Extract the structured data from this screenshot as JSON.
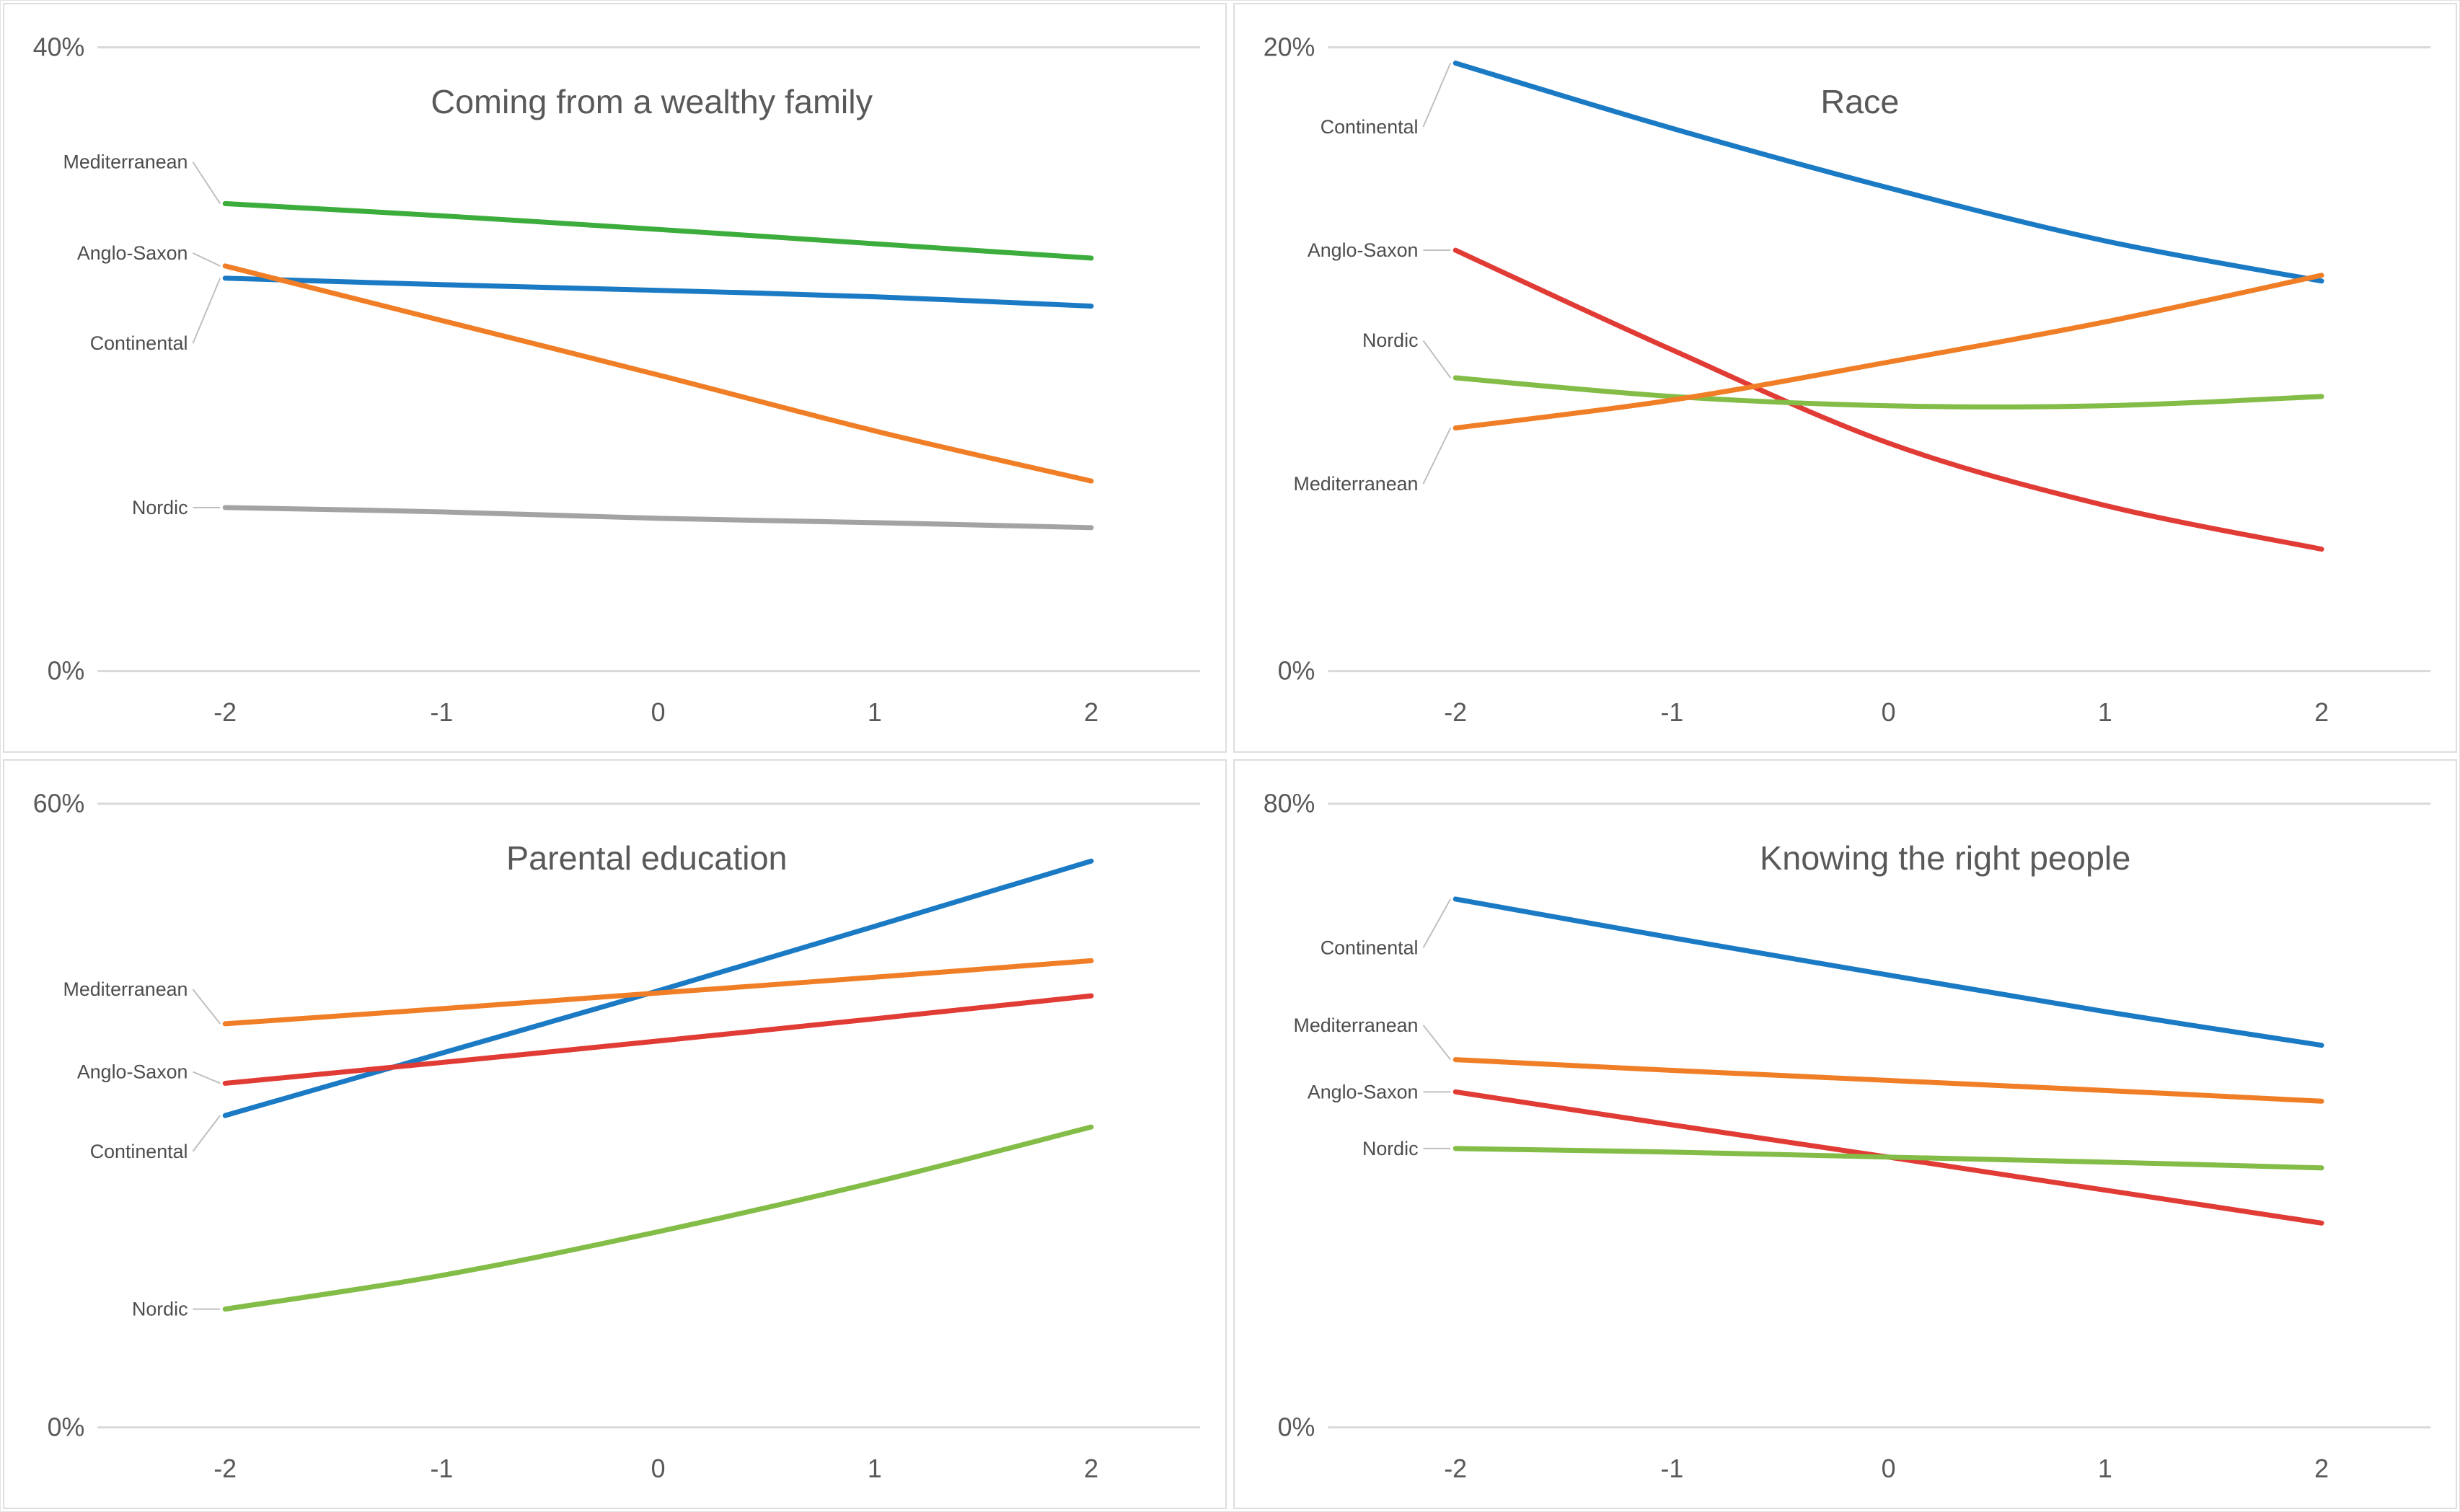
{
  "page": {
    "background": "#ffffff",
    "panel_border_color": "#dedede",
    "gridline_color": "#d9d9d9",
    "axis_text_color": "#595959",
    "series_label_color": "#4d4d4d",
    "leader_line_color": "#bfbfbf"
  },
  "colors": {
    "blue": "#1b7ac4",
    "orange": "#f07e26",
    "red": "#e13b35",
    "green": "#3cad3c",
    "light_green": "#83bc47",
    "gray": "#a3a3a3"
  },
  "chart_data": [
    {
      "type": "line",
      "title": "Coming from a wealthy family",
      "title_x_frac": 0.53,
      "x": [
        -2,
        -1,
        0,
        1,
        2
      ],
      "x_tick_labels": [
        "-2",
        "-1",
        "0",
        "1",
        "2"
      ],
      "ylim": [
        0,
        40
      ],
      "ymax_label": "40%",
      "ymin_label": "0%",
      "grid": "top-and-zero-only",
      "legend_position": "inline-left-labels",
      "series": [
        {
          "name": "Continental",
          "color": "blue",
          "values": [
            25.2,
            24.8,
            24.4,
            24.0,
            23.4
          ],
          "label_dy": 91
        },
        {
          "name": "Anglo-Saxon",
          "color": "orange",
          "values": [
            26.0,
            22.5,
            19.0,
            15.4,
            12.2
          ],
          "label_dy": -18
        },
        {
          "name": "Nordic",
          "color": "gray",
          "values": [
            10.5,
            10.2,
            9.8,
            9.5,
            9.2
          ],
          "label_dy": 0
        },
        {
          "name": "Mediterranean",
          "color": "green",
          "values": [
            30.0,
            29.2,
            28.3,
            27.4,
            26.5
          ],
          "label_dy": -58
        }
      ]
    },
    {
      "type": "line",
      "title": "Race",
      "title_x_frac": 0.512,
      "x": [
        -2,
        -1,
        0,
        1,
        2
      ],
      "x_tick_labels": [
        "-2",
        "-1",
        "0",
        "1",
        "2"
      ],
      "ylim": [
        0,
        20
      ],
      "ymax_label": "20%",
      "ymin_label": "0%",
      "grid": "top-and-zero-only",
      "legend_position": "inline-left-labels",
      "series": [
        {
          "name": "Continental",
          "color": "blue",
          "values": [
            19.5,
            17.4,
            15.5,
            13.8,
            12.5
          ],
          "label_dy": 89
        },
        {
          "name": "Anglo-Saxon",
          "color": "red",
          "values": [
            13.5,
            10.3,
            7.3,
            5.3,
            3.9
          ],
          "label_dy": 0
        },
        {
          "name": "Nordic",
          "color": "light_green",
          "values": [
            9.4,
            8.8,
            8.5,
            8.5,
            8.8
          ],
          "label_dy": -52
        },
        {
          "name": "Mediterranean",
          "color": "orange",
          "values": [
            7.8,
            8.7,
            9.9,
            11.2,
            12.7
          ],
          "label_dy": 78
        }
      ]
    },
    {
      "type": "line",
      "title": "Parental education",
      "title_x_frac": 0.526,
      "x": [
        -2,
        -1,
        0,
        1,
        2
      ],
      "x_tick_labels": [
        "-2",
        "-1",
        "0",
        "1",
        "2"
      ],
      "ylim": [
        0,
        60
      ],
      "ymax_label": "60%",
      "ymin_label": "0%",
      "grid": "top-and-zero-only",
      "legend_position": "inline-left-labels",
      "series": [
        {
          "name": "Continental",
          "color": "blue",
          "values": [
            30.0,
            36.0,
            42.0,
            48.2,
            54.5
          ],
          "label_dy": 50
        },
        {
          "name": "Anglo-Saxon",
          "color": "red",
          "values": [
            33.1,
            35.1,
            37.2,
            39.3,
            41.5
          ],
          "label_dy": -16
        },
        {
          "name": "Nordic",
          "color": "light_green",
          "values": [
            11.4,
            14.6,
            18.8,
            23.6,
            28.9
          ],
          "label_dy": 0
        },
        {
          "name": "Mediterranean",
          "color": "orange",
          "values": [
            38.8,
            40.3,
            41.8,
            43.3,
            44.9
          ],
          "label_dy": -48
        }
      ]
    },
    {
      "type": "line",
      "title": "Knowing the right people",
      "title_x_frac": 0.582,
      "x": [
        -2,
        -1,
        0,
        1,
        2
      ],
      "x_tick_labels": [
        "-2",
        "-1",
        "0",
        "1",
        "2"
      ],
      "ylim": [
        0,
        80
      ],
      "ymax_label": "80%",
      "ymin_label": "0%",
      "grid": "top-and-zero-only",
      "legend_position": "inline-left-labels",
      "series": [
        {
          "name": "Continental",
          "color": "blue",
          "values": [
            67.8,
            62.8,
            58.0,
            53.3,
            49.0
          ],
          "label_dy": 68
        },
        {
          "name": "Anglo-Saxon",
          "color": "red",
          "values": [
            43.0,
            38.8,
            34.7,
            30.4,
            26.2
          ],
          "label_dy": 0
        },
        {
          "name": "Nordic",
          "color": "light_green",
          "values": [
            35.8,
            35.3,
            34.7,
            34.0,
            33.3
          ],
          "label_dy": 0
        },
        {
          "name": "Mediterranean",
          "color": "orange",
          "values": [
            47.2,
            45.8,
            44.5,
            43.2,
            41.8
          ],
          "label_dy": -48
        }
      ]
    }
  ]
}
